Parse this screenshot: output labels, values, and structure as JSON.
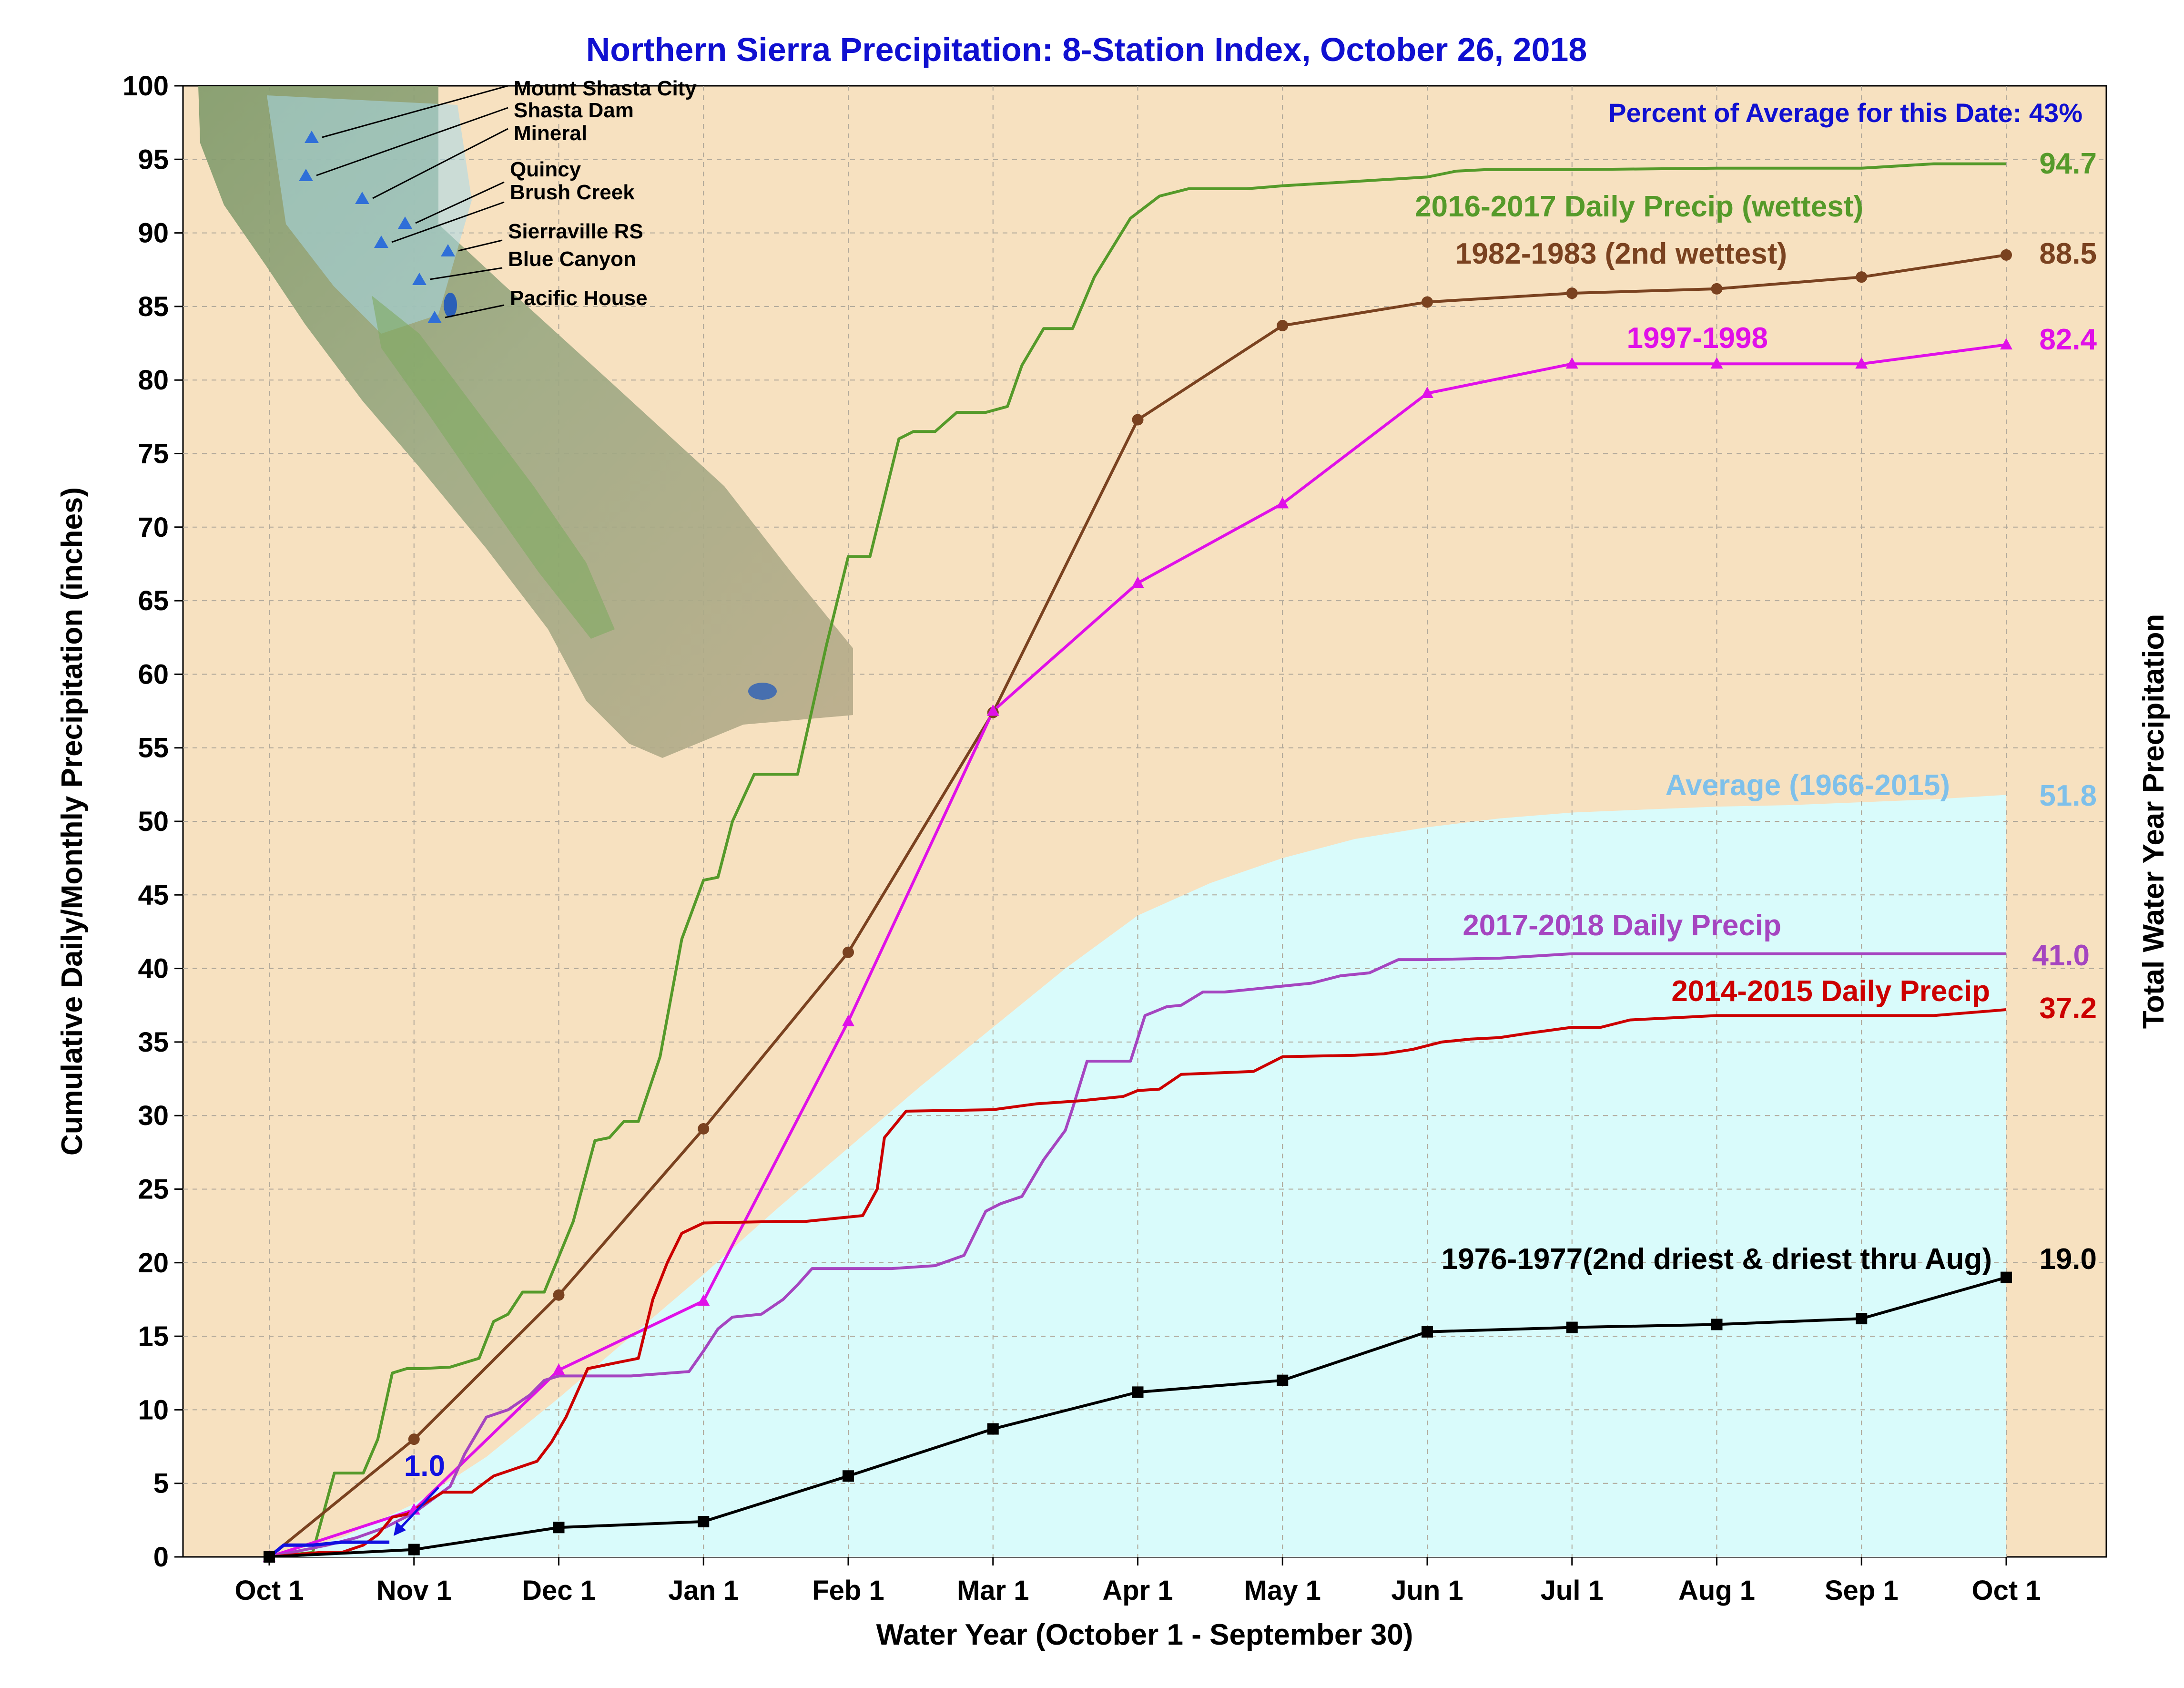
{
  "chart_data": {
    "type": "line",
    "title": "Northern Sierra Precipitation: 8-Station Index, October 26, 2018",
    "subtitle": "Percent of Average for this Date: 43%",
    "xlabel": "Water Year (October 1 - September 30)",
    "ylabel": "Cumulative Daily/Monthly Precipitation (inches)",
    "ylabel_right": "Total Water Year Precipitation",
    "ylim": [
      0,
      100
    ],
    "yticks": [
      0,
      5,
      10,
      15,
      20,
      25,
      30,
      35,
      40,
      45,
      50,
      55,
      60,
      65,
      70,
      75,
      80,
      85,
      90,
      95,
      100
    ],
    "xlim_months": [
      -0.2,
      12.4
    ],
    "xticks": [
      "Oct 1",
      "Nov 1",
      "Dec 1",
      "Jan 1",
      "Feb 1",
      "Mar 1",
      "Apr 1",
      "May 1",
      "Jun 1",
      "Jul 1",
      "Aug 1",
      "Sep 1",
      "Oct 1"
    ],
    "grid": true,
    "colors": {
      "background": "#f7e1c0",
      "average_fill": "#d9fbfb",
      "wettest": "#559a2a",
      "second_wettest": "#7a4220",
      "y1997": "#e010e8",
      "average_label": "#7ec0ea",
      "y2017": "#a545c0",
      "y2014": "#cc0000",
      "y1976": "#000000",
      "current": "#1010e0",
      "title": "#1010d0"
    },
    "average": {
      "name": "Average (1966-2015)",
      "total_label": "51.8",
      "x": [
        0,
        0.5,
        1,
        1.5,
        2,
        2.5,
        3,
        3.5,
        4,
        4.5,
        5,
        5.5,
        6,
        6.5,
        7,
        7.5,
        8,
        8.5,
        9,
        9.5,
        10,
        10.5,
        11,
        11.5,
        12
      ],
      "y": [
        0,
        1.3,
        3.6,
        6.8,
        10.8,
        15.0,
        19.2,
        23.6,
        27.8,
        32.0,
        36.0,
        40.0,
        43.6,
        45.8,
        47.5,
        48.8,
        49.6,
        50.2,
        50.6,
        50.8,
        51.0,
        51.1,
        51.3,
        51.5,
        51.8
      ]
    },
    "series": [
      {
        "name": "2016-2017 Daily Precip (wettest)",
        "key": "wettest",
        "total_label": "94.7",
        "style": "step",
        "x": [
          0,
          0.3,
          0.45,
          0.65,
          0.75,
          0.85,
          0.95,
          1.05,
          1.25,
          1.45,
          1.55,
          1.65,
          1.75,
          1.9,
          2.1,
          2.25,
          2.35,
          2.45,
          2.55,
          2.7,
          2.85,
          3.0,
          3.1,
          3.2,
          3.35,
          3.5,
          3.65,
          3.85,
          4.0,
          4.15,
          4.25,
          4.35,
          4.45,
          4.6,
          4.75,
          4.95,
          5.1,
          5.2,
          5.35,
          5.55,
          5.7,
          5.95,
          6.15,
          6.35,
          6.55,
          6.75,
          7.0,
          7.5,
          8.0,
          8.2,
          8.4,
          9.0,
          10.0,
          11.0,
          11.5,
          12.0
        ],
        "y": [
          0,
          0.3,
          5.7,
          5.7,
          8.0,
          12.5,
          12.8,
          12.8,
          12.9,
          13.5,
          16.0,
          16.5,
          18.0,
          18.0,
          22.8,
          28.3,
          28.5,
          29.6,
          29.6,
          34.0,
          42.0,
          46.0,
          46.2,
          50.0,
          53.2,
          53.2,
          53.2,
          62.0,
          68.0,
          68.0,
          72.0,
          76.0,
          76.5,
          76.5,
          77.8,
          77.8,
          78.2,
          81.0,
          83.5,
          83.5,
          87.0,
          91.0,
          92.5,
          93.0,
          93.0,
          93.0,
          93.2,
          93.5,
          93.8,
          94.2,
          94.3,
          94.3,
          94.4,
          94.4,
          94.7,
          94.7
        ]
      },
      {
        "name": "1982-1983 (2nd wettest)",
        "key": "second_wettest",
        "total_label": "88.5",
        "style": "markers-circle",
        "x": [
          0,
          1,
          2,
          3,
          4,
          5,
          6,
          7,
          8,
          9,
          10,
          11,
          12
        ],
        "y": [
          0,
          8.0,
          17.8,
          29.1,
          41.1,
          57.4,
          77.3,
          83.7,
          85.3,
          85.9,
          86.2,
          87.0,
          88.5
        ]
      },
      {
        "name": "1997-1998",
        "key": "y1997",
        "total_label": "82.4",
        "style": "markers-triangle",
        "x": [
          0,
          1,
          2,
          3,
          4,
          5,
          6,
          7,
          8,
          9,
          10,
          11,
          12
        ],
        "y": [
          0,
          3.2,
          12.7,
          17.4,
          36.4,
          57.5,
          66.2,
          71.6,
          79.1,
          81.1,
          81.1,
          81.1,
          82.4
        ]
      },
      {
        "name": "2017-2018 Daily Precip",
        "key": "y2017",
        "total_label": "41.0",
        "style": "step",
        "x": [
          0,
          0.4,
          0.6,
          0.8,
          1.0,
          1.25,
          1.35,
          1.5,
          1.65,
          1.8,
          1.9,
          2.0,
          2.1,
          2.5,
          2.9,
          3.0,
          3.1,
          3.2,
          3.4,
          3.55,
          3.65,
          3.75,
          3.85,
          4.0,
          4.3,
          4.6,
          4.8,
          4.95,
          5.05,
          5.2,
          5.35,
          5.5,
          5.55,
          5.65,
          5.85,
          5.95,
          6.05,
          6.15,
          6.2,
          6.3,
          6.45,
          6.6,
          6.8,
          7.0,
          7.2,
          7.4,
          7.6,
          7.8,
          8.0,
          8.5,
          9.0,
          12.0
        ],
        "y": [
          0,
          0.8,
          1.3,
          2.0,
          3.0,
          4.8,
          7.0,
          9.5,
          10.0,
          11.0,
          12.0,
          12.3,
          12.3,
          12.3,
          12.6,
          14.0,
          15.5,
          16.3,
          16.5,
          17.5,
          18.5,
          19.6,
          19.6,
          19.6,
          19.6,
          19.8,
          20.5,
          23.5,
          24.0,
          24.5,
          27.0,
          29.0,
          30.5,
          33.7,
          33.7,
          33.7,
          36.8,
          37.2,
          37.4,
          37.5,
          38.4,
          38.4,
          38.6,
          38.8,
          39.0,
          39.5,
          39.7,
          40.6,
          40.6,
          40.7,
          41.0,
          41.0
        ]
      },
      {
        "name": "2014-2015 Daily Precip",
        "key": "y2014",
        "total_label": "37.2",
        "style": "step",
        "x": [
          0,
          0.35,
          0.5,
          0.65,
          0.75,
          0.85,
          0.95,
          1.05,
          1.2,
          1.4,
          1.55,
          1.7,
          1.85,
          1.95,
          2.05,
          2.2,
          2.3,
          2.4,
          2.55,
          2.65,
          2.75,
          2.85,
          3.0,
          3.5,
          3.7,
          4.0,
          4.1,
          4.2,
          4.25,
          4.4,
          5.0,
          5.3,
          5.6,
          5.9,
          6.0,
          6.15,
          6.3,
          6.8,
          7.0,
          7.5,
          7.7,
          7.9,
          8.1,
          8.3,
          8.5,
          8.7,
          9.0,
          9.2,
          9.4,
          10.0,
          11.0,
          11.5,
          12.0
        ],
        "y": [
          0,
          0.3,
          0.3,
          0.8,
          1.5,
          2.7,
          2.9,
          3.5,
          4.4,
          4.4,
          5.5,
          6.0,
          6.5,
          7.8,
          9.5,
          12.8,
          13.0,
          13.2,
          13.5,
          17.5,
          20.0,
          22.0,
          22.7,
          22.8,
          22.8,
          23.1,
          23.2,
          25.0,
          28.5,
          30.3,
          30.4,
          30.8,
          31.0,
          31.3,
          31.7,
          31.8,
          32.8,
          33.0,
          34.0,
          34.1,
          34.2,
          34.5,
          35.0,
          35.2,
          35.3,
          35.6,
          36.0,
          36.0,
          36.5,
          36.8,
          36.8,
          36.8,
          37.2
        ]
      },
      {
        "name": "1976-1977(2nd driest & driest thru Aug)",
        "key": "y1976",
        "total_label": "19.0",
        "style": "markers-square",
        "x": [
          0,
          1,
          2,
          3,
          4,
          5,
          6,
          7,
          8,
          9,
          10,
          11,
          12
        ],
        "y": [
          0,
          0.5,
          2.0,
          2.4,
          5.5,
          8.7,
          11.2,
          12.0,
          15.3,
          15.6,
          15.8,
          16.2,
          19.0
        ]
      },
      {
        "name": "",
        "key": "current",
        "total_label": "1.0",
        "style": "step",
        "x": [
          0,
          0.1,
          0.3,
          0.5,
          0.7,
          0.83
        ],
        "y": [
          0,
          0.8,
          0.8,
          1.0,
          1.0,
          1.0
        ]
      }
    ],
    "inset_map_labels": [
      "Mount Shasta City",
      "Shasta Dam",
      "Mineral",
      "Quincy",
      "Brush Creek",
      "Sierraville RS",
      "Blue Canyon",
      "Pacific House"
    ]
  }
}
